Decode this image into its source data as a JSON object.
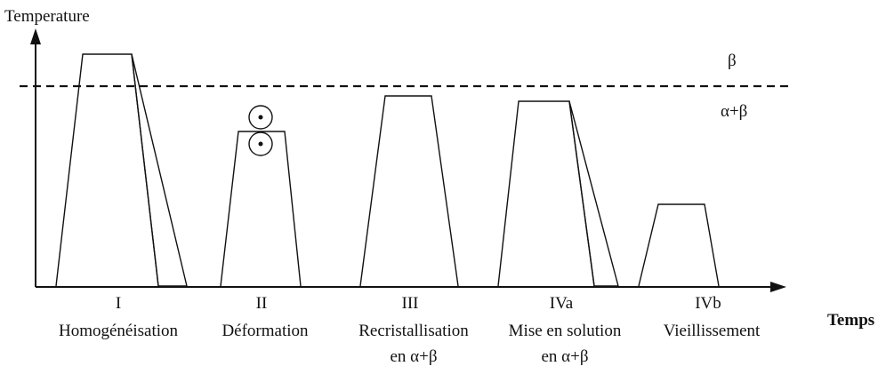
{
  "axes": {
    "y_label": "Temperature",
    "x_label": "Temps"
  },
  "regions": {
    "upper": "β",
    "lower": "α+β"
  },
  "phases": [
    {
      "number": "I",
      "name": "Homogénéisation"
    },
    {
      "number": "II",
      "name": "Déformation"
    },
    {
      "number": "III",
      "name": "Recristallisation",
      "subtitle": "en α+β"
    },
    {
      "number": "IVa",
      "name": "Mise en solution",
      "subtitle": "en α+β"
    },
    {
      "number": "IVb",
      "name": "Vieillissement"
    }
  ]
}
